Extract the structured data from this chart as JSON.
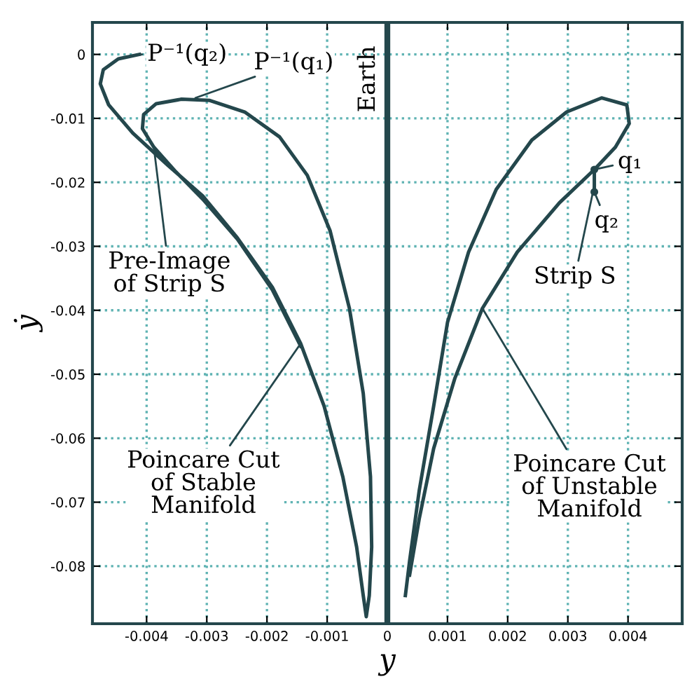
{
  "chart_data": {
    "type": "line",
    "xlabel": "y",
    "ylabel": "ẏ",
    "xlim": [
      -0.0049,
      0.0049
    ],
    "ylim": [
      -0.089,
      0.005
    ],
    "xticks": [
      -0.004,
      -0.003,
      -0.002,
      -0.001,
      0,
      0.001,
      0.002,
      0.003,
      0.004
    ],
    "yticks": [
      0,
      -0.01,
      -0.02,
      -0.03,
      -0.04,
      -0.05,
      -0.06,
      -0.07,
      -0.08
    ],
    "grid": true,
    "series": [
      {
        "color": "#24474c",
        "x": [
          -0.00412,
          -0.00447,
          -0.00472,
          -0.00477,
          -0.00463,
          -0.00423,
          -0.00365,
          -0.00307,
          -0.00249,
          -0.00191,
          -0.00144,
          -0.00105,
          -0.00074,
          -0.00051,
          -0.0004,
          -0.00035,
          -0.0003,
          -0.00026,
          -0.00028,
          -0.0004,
          -0.00063,
          -0.00095,
          -0.00133,
          -0.00179,
          -0.00237,
          -0.00295,
          -0.00342,
          -0.00384,
          -0.00405,
          -0.00407,
          -0.00388,
          -0.00353,
          -0.00307,
          -0.00249,
          -0.00191,
          -0.00144
        ],
        "values": [
          0,
          -0.0007,
          -0.0024,
          -0.0046,
          -0.0079,
          -0.0123,
          -0.0173,
          -0.0221,
          -0.0287,
          -0.0364,
          -0.0452,
          -0.055,
          -0.066,
          -0.077,
          -0.0846,
          -0.0879,
          -0.0846,
          -0.077,
          -0.066,
          -0.053,
          -0.0397,
          -0.0276,
          -0.0189,
          -0.0129,
          -0.009,
          -0.0072,
          -0.007,
          -0.0077,
          -0.0094,
          -0.0116,
          -0.0145,
          -0.0182,
          -0.0226,
          -0.0289,
          -0.0368,
          -0.0456
        ]
      },
      {
        "color": "#24474c",
        "x": [
          0.0003,
          0.00037,
          0.00053,
          0.00077,
          0.001,
          0.00135,
          0.00181,
          0.0024,
          0.00298,
          0.00356,
          0.00398,
          0.00402,
          0.00379,
          0.00344,
          0.00286,
          0.00216,
          0.00158,
          0.00112,
          0.00077,
          0.00053,
          0.00037
        ],
        "values": [
          -0.0846,
          -0.0792,
          -0.0682,
          -0.055,
          -0.0419,
          -0.0309,
          -0.0211,
          -0.0134,
          -0.009,
          -0.0068,
          -0.0079,
          -0.0108,
          -0.0145,
          -0.018,
          -0.0232,
          -0.0309,
          -0.0397,
          -0.0507,
          -0.0616,
          -0.0726,
          -0.0814
        ]
      },
      {
        "color": "#24474c",
        "marker": "circle",
        "x": [
          0.00344,
          0.00344
        ],
        "values": [
          -0.018,
          -0.0215
        ]
      }
    ],
    "ref_lines": [
      {
        "axis": "x",
        "value": 0,
        "label": "Earth",
        "color": "#24474c"
      }
    ],
    "annotations": [
      {
        "text": "P⁻¹(q₂)",
        "x": -0.00412,
        "y": 0
      },
      {
        "text": "P⁻¹(q₁)",
        "x": -0.00319,
        "y": -0.0068
      },
      {
        "text": "Pre-Image\nof Strip S",
        "x": -0.00388,
        "y": -0.0145
      },
      {
        "text": "Poincare Cut\nof Stable\nManifold",
        "x": -0.00144,
        "y": -0.0452
      },
      {
        "text": "Poincare Cut\nof Unstable\nManifold",
        "x": 0.00158,
        "y": -0.0397
      },
      {
        "text": "Strip S",
        "x": 0.00344,
        "y": -0.0205
      },
      {
        "text": "q₁",
        "x": 0.00344,
        "y": -0.018
      },
      {
        "text": "q₂",
        "x": 0.00344,
        "y": -0.0215
      }
    ]
  }
}
